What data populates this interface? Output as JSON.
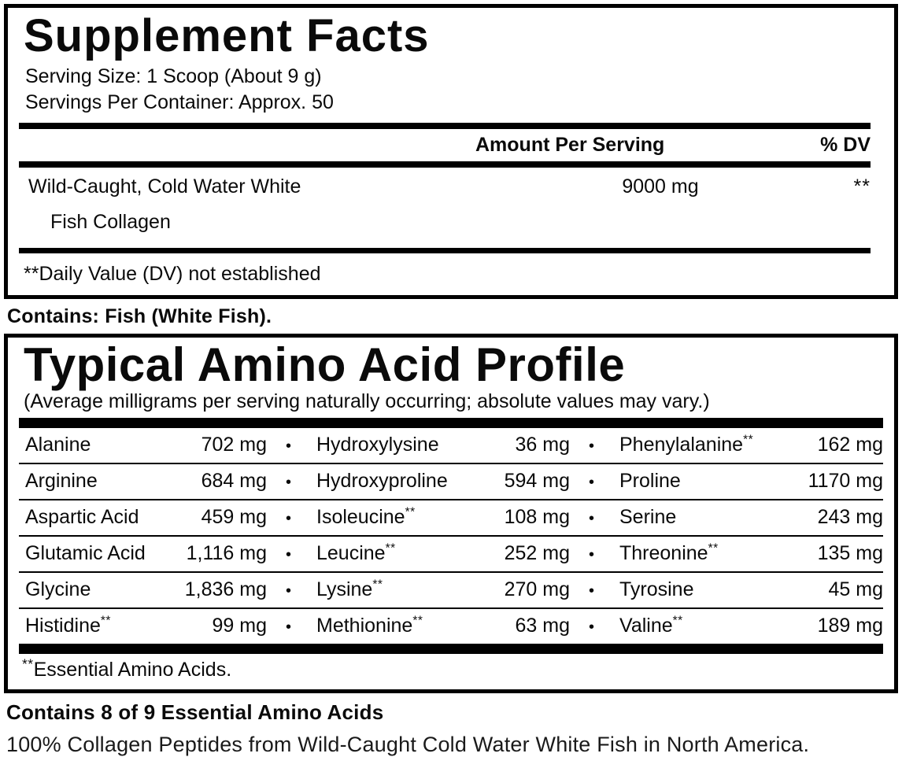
{
  "supplement_facts": {
    "title": "Supplement Facts",
    "serving_size": "Serving Size: 1 Scoop (About 9 g)",
    "servings_per_container": "Servings Per Container: Approx. 50",
    "col_amount": "Amount Per Serving",
    "col_dv": "% DV",
    "ingredient": {
      "name_line1": "Wild-Caught, Cold Water White",
      "name_line2": "Fish Collagen",
      "amount": "9000 mg",
      "dv": "**"
    },
    "footnote": "**Daily Value (DV) not established"
  },
  "contains_allergen": "Contains: Fish (White Fish).",
  "amino_profile": {
    "title": "Typical Amino Acid Profile",
    "subtitle": "(Average milligrams per serving naturally occurring; absolute values may vary.)",
    "bullet": "•",
    "rows": [
      {
        "c0": {
          "name": "Alanine",
          "sup": "",
          "value": "702 mg"
        },
        "c1": {
          "name": "Hydroxylysine",
          "sup": "",
          "value": "36 mg"
        },
        "c2": {
          "name": "Phenylalanine",
          "sup": "**",
          "value": "162 mg"
        }
      },
      {
        "c0": {
          "name": "Arginine",
          "sup": "",
          "value": "684 mg"
        },
        "c1": {
          "name": "Hydroxyproline",
          "sup": "",
          "value": "594 mg"
        },
        "c2": {
          "name": "Proline",
          "sup": "",
          "value": "1170 mg"
        }
      },
      {
        "c0": {
          "name": "Aspartic Acid",
          "sup": "",
          "value": "459 mg"
        },
        "c1": {
          "name": "Isoleucine",
          "sup": "**",
          "value": "108 mg"
        },
        "c2": {
          "name": "Serine",
          "sup": "",
          "value": "243 mg"
        }
      },
      {
        "c0": {
          "name": "Glutamic Acid",
          "sup": "",
          "value": "1,116 mg"
        },
        "c1": {
          "name": "Leucine",
          "sup": "**",
          "value": "252 mg"
        },
        "c2": {
          "name": "Threonine",
          "sup": "**",
          "value": "135 mg"
        }
      },
      {
        "c0": {
          "name": "Glycine",
          "sup": "",
          "value": "1,836 mg"
        },
        "c1": {
          "name": "Lysine",
          "sup": "**",
          "value": "270 mg"
        },
        "c2": {
          "name": "Tyrosine",
          "sup": "",
          "value": "45 mg"
        }
      },
      {
        "c0": {
          "name": "Histidine",
          "sup": "**",
          "value": "99 mg"
        },
        "c1": {
          "name": "Methionine",
          "sup": "**",
          "value": "63 mg"
        },
        "c2": {
          "name": "Valine",
          "sup": "**",
          "value": "189 mg"
        }
      }
    ],
    "footnote_sup": "**",
    "footnote": "Essential Amino Acids."
  },
  "contains_essential": "Contains 8 of 9 Essential Amino Acids",
  "tagline": "100% Collagen Peptides from Wild-Caught Cold Water White Fish in North America."
}
